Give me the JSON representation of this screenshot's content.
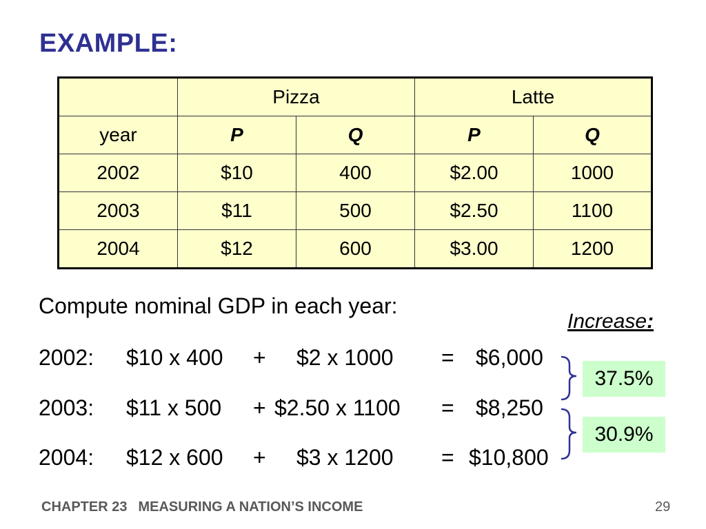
{
  "title": "EXAMPLE:",
  "table": {
    "group_headers": [
      "Pizza",
      "Latte"
    ],
    "column_headers": [
      "year",
      "P",
      "Q",
      "P",
      "Q"
    ],
    "rows": [
      [
        "2002",
        "$10",
        "400",
        "$2.00",
        "1000"
      ],
      [
        "2003",
        "$11",
        "500",
        "$2.50",
        "1100"
      ],
      [
        "2004",
        "$12",
        "600",
        "$3.00",
        "1200"
      ]
    ]
  },
  "prompt": "Compute nominal GDP in each year:",
  "calcs": [
    {
      "year": "2002:",
      "a": "$10 x 400",
      "op": "+",
      "b": "$2 x 1000",
      "eq": "=",
      "result": "$6,000"
    },
    {
      "year": "2003:",
      "a": "$11 x 500",
      "op": "+",
      "b": "$2.50 x 1100",
      "eq": "=",
      "result": "$8,250"
    },
    {
      "year": "2004:",
      "a": "$12 x 600",
      "op": "+",
      "b": "$3 x 1200",
      "eq": "=",
      "result": "$10,800"
    }
  ],
  "increase_label": "Increase",
  "increase_colon": ":",
  "increases": [
    "37.5%",
    "30.9%"
  ],
  "footer": {
    "chapter": "CHAPTER 23",
    "chapter_title": "MEASURING A NATION’S INCOME",
    "page": "29"
  },
  "colors": {
    "title": "#2E3192",
    "table_bg": "#FFFFCC",
    "pct_bg": "#CCFFCC",
    "brace": "#2E3192"
  }
}
